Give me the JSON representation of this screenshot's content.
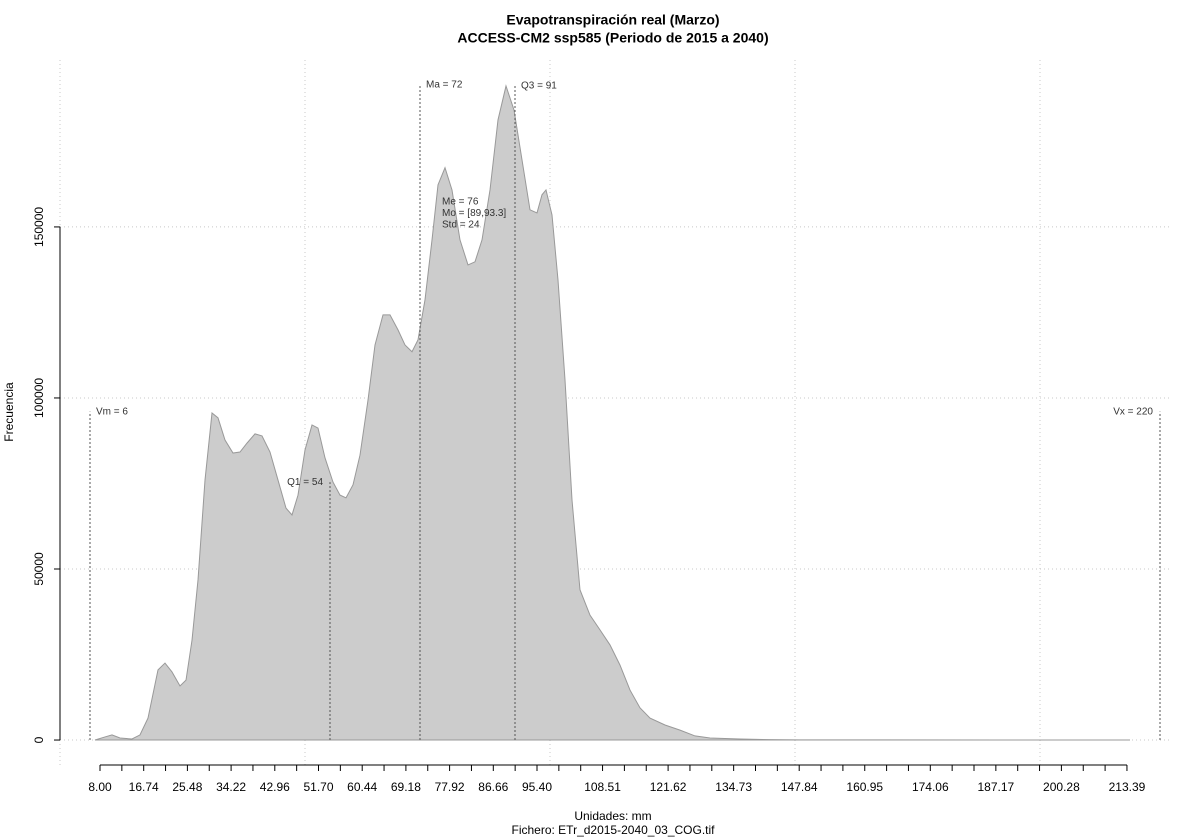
{
  "chart_data": {
    "type": "area",
    "title": "Evapotranspiración real (Marzo)",
    "subtitle": "ACCESS-CM2 ssp585 (Periodo de 2015 a 2040)",
    "xlabel": "Unidades: mm",
    "ylabel": "Frecuencia",
    "caption": "Fichero: ETr_d2015-2040_03_COG.tif",
    "color": "#cccccc",
    "line_color": "#999999",
    "grid": true,
    "xlim": [
      0,
      222
    ],
    "ylim": [
      -7300,
      198800
    ],
    "yticks": [
      0,
      50000,
      100000,
      150000
    ],
    "xgrid": [
      0,
      49,
      98,
      147,
      196
    ],
    "xticks": [
      {
        "value": 8,
        "label": "8.00"
      },
      16.74,
      25.48,
      34.22,
      42.96,
      {
        "value": 51.7,
        "label": "51.70"
      },
      60.44,
      69.18,
      77.92,
      86.66,
      {
        "value": 95.4,
        "label": "95.40"
      },
      108.51,
      121.62,
      134.73,
      147.84,
      160.95,
      174.06,
      187.17,
      200.28,
      213.39
    ],
    "xminor": [
      12.37,
      21.11,
      29.85,
      38.59,
      47.33,
      56.07,
      64.81,
      73.55,
      82.29,
      91.03,
      99.77,
      104.14,
      112.88,
      117.25,
      125.99,
      130.36,
      139.1,
      143.47,
      152.21,
      156.58,
      165.32,
      169.69,
      178.43,
      182.8,
      191.54,
      195.91,
      204.65,
      209.02
    ],
    "x": [
      7,
      9,
      10.4,
      12,
      14.4,
      16,
      17.6,
      19.6,
      21,
      22.4,
      24,
      25.2,
      26.4,
      27.6,
      29,
      30.4,
      31.6,
      33,
      34.6,
      36,
      37.4,
      39,
      40.4,
      42,
      43.6,
      45.2,
      46.4,
      47.6,
      49,
      50.4,
      51.6,
      53,
      54.6,
      56,
      57.2,
      58.6,
      60,
      61.6,
      63,
      64.6,
      66,
      67.6,
      69,
      70.4,
      71.6,
      73,
      74.4,
      75.6,
      77,
      78.4,
      80,
      81.6,
      83,
      84.4,
      86,
      87.6,
      89.2,
      90.8,
      92.4,
      94,
      95.4,
      96.4,
      97.2,
      98.4,
      99.6,
      101,
      102.4,
      104,
      106,
      108,
      110,
      112,
      114,
      116,
      118,
      121,
      124,
      127,
      130,
      136,
      142,
      148,
      188,
      214
    ],
    "values": [
      0,
      900,
      1500,
      600,
      300,
      1500,
      6400,
      20500,
      22500,
      19900,
      15800,
      17500,
      29200,
      46800,
      76000,
      95600,
      94200,
      87700,
      83900,
      84200,
      86800,
      89500,
      88900,
      84200,
      76000,
      67800,
      65800,
      71600,
      84800,
      92100,
      91200,
      82500,
      75400,
      71600,
      70800,
      74600,
      83300,
      99400,
      115500,
      124300,
      124300,
      119900,
      115500,
      113500,
      117000,
      128700,
      146200,
      162300,
      167300,
      160800,
      146200,
      138900,
      139800,
      146200,
      160800,
      181300,
      191200,
      184200,
      169600,
      155000,
      154100,
      159400,
      160800,
      153500,
      134500,
      105300,
      70200,
      43900,
      36500,
      32200,
      27800,
      21900,
      14600,
      9400,
      6400,
      4400,
      2900,
      1200,
      600,
      300,
      100,
      50,
      20,
      0
    ],
    "stats": [
      {
        "label": "Vm = 6",
        "x": 6,
        "y": 96000
      },
      {
        "label": "Q1 = 54",
        "x": 54,
        "y": 75400
      },
      {
        "label": "Ma = 72",
        "x": 72,
        "y": 191500
      },
      {
        "label": "Q3 = 91",
        "x": 91,
        "y": 191200
      },
      {
        "label": "Vx = 220",
        "x": 220,
        "y": 96000
      }
    ],
    "annotations": [
      "Me = 76",
      "Mo = [89,93.3]",
      "Std = 24"
    ]
  }
}
